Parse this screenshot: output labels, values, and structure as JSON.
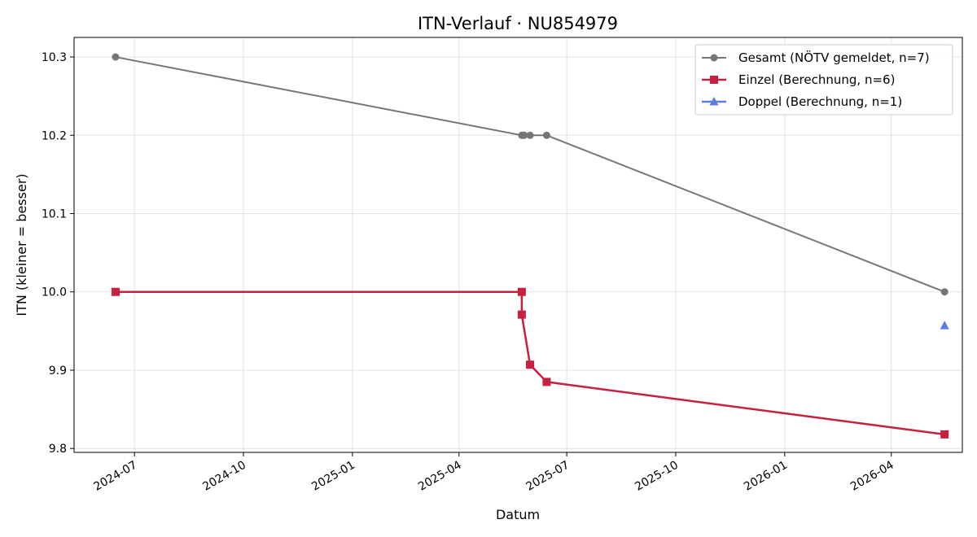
{
  "chart_data": {
    "type": "line",
    "title": "ITN-Verlauf · NU854979",
    "xlabel": "Datum",
    "ylabel": "ITN  (kleiner = besser)",
    "x_axis": {
      "type": "date",
      "range": [
        "2024-05-11",
        "2026-05-31"
      ],
      "ticks": [
        "2024-07",
        "2024-10",
        "2025-01",
        "2025-04",
        "2025-07",
        "2025-10",
        "2026-01",
        "2026-04"
      ]
    },
    "y_axis": {
      "range": [
        9.795,
        10.325
      ],
      "ticks": [
        9.8,
        9.9,
        10.0,
        10.1,
        10.2,
        10.3
      ],
      "tick_labels": [
        "9.8",
        "9.9",
        "10.0",
        "10.1",
        "10.2",
        "10.3"
      ]
    },
    "grid": true,
    "legend_position": "top-right",
    "series": [
      {
        "name": "Gesamt (NÖTV gemeldet, n=7)",
        "color": "#555555",
        "marker": "circle",
        "points": [
          {
            "x": "2024-06-15",
            "y": 10.3
          },
          {
            "x": "2025-05-24",
            "y": 10.2
          },
          {
            "x": "2025-05-25",
            "y": 10.2
          },
          {
            "x": "2025-05-26",
            "y": 10.2
          },
          {
            "x": "2025-05-31",
            "y": 10.2
          },
          {
            "x": "2025-06-14",
            "y": 10.2
          },
          {
            "x": "2026-05-16",
            "y": 10.0
          }
        ]
      },
      {
        "name": "Einzel (Berechnung, n=6)",
        "color": "#c8203f",
        "marker": "square",
        "points": [
          {
            "x": "2024-06-15",
            "y": 10.0
          },
          {
            "x": "2025-05-24",
            "y": 10.0
          },
          {
            "x": "2025-05-24",
            "y": 9.971
          },
          {
            "x": "2025-05-31",
            "y": 9.907
          },
          {
            "x": "2025-06-14",
            "y": 9.885
          },
          {
            "x": "2026-05-16",
            "y": 9.818
          }
        ]
      },
      {
        "name": "Doppel (Berechnung, n=1)",
        "color": "#4a6ee0",
        "marker": "triangle",
        "points": [
          {
            "x": "2026-05-16",
            "y": 9.957
          }
        ]
      }
    ]
  }
}
